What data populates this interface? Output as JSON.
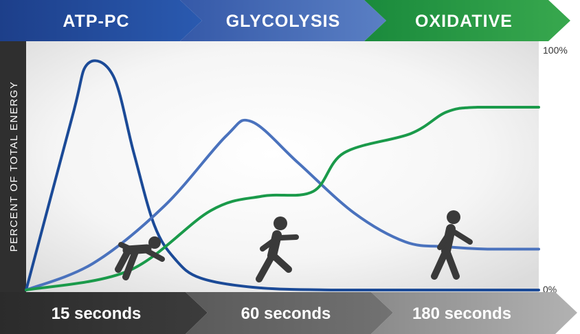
{
  "chart_data": {
    "type": "line",
    "ylabel": "PERCENT OF TOTAL ENERGY",
    "ylim": [
      0,
      100
    ],
    "y_tick_labels": {
      "top": "100%",
      "bottom": "0%"
    },
    "systems": [
      {
        "label": "ATP-PC",
        "color": "#1b4a97"
      },
      {
        "label": "GLYCOLYSIS",
        "color": "#4a72bd"
      },
      {
        "label": "OXIDATIVE",
        "color": "#1a9a4a"
      }
    ],
    "time_labels": [
      "15 seconds",
      "60 seconds",
      "180 seconds"
    ],
    "series": [
      {
        "color": "#1b4a97",
        "x": [
          0,
          0.09,
          0.12,
          0.17,
          0.21,
          0.25,
          0.29,
          0.34,
          0.45,
          0.6,
          0.8,
          1.0
        ],
        "y": [
          0,
          72,
          94,
          89,
          57,
          27,
          13,
          5,
          1,
          0,
          0,
          0
        ]
      },
      {
        "color": "#4a72bd",
        "x": [
          0,
          0.13,
          0.27,
          0.39,
          0.44,
          0.53,
          0.64,
          0.74,
          0.82,
          0.9,
          1.0
        ],
        "y": [
          0,
          11,
          35,
          64,
          70,
          53,
          32,
          20,
          18,
          17,
          17
        ]
      },
      {
        "color": "#1a9a4a",
        "x": [
          0,
          0.2,
          0.36,
          0.46,
          0.56,
          0.62,
          0.75,
          0.82,
          0.88,
          1.0
        ],
        "y": [
          0,
          8,
          33,
          39,
          41,
          57,
          65,
          74,
          76,
          76
        ]
      }
    ]
  }
}
